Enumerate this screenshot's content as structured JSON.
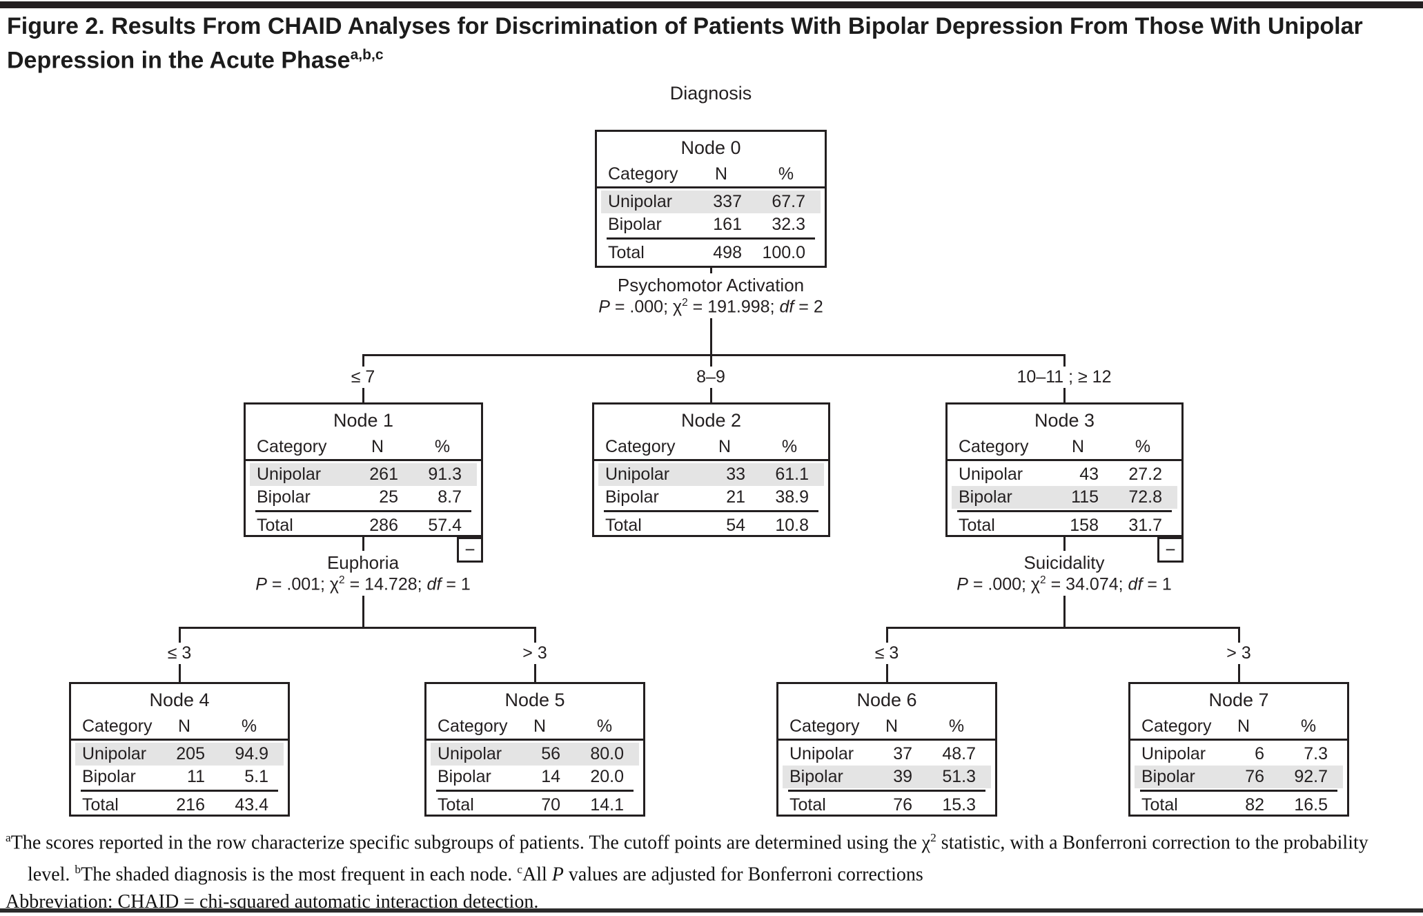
{
  "colors": {
    "ink": "#231f20",
    "shaded_row": "#e4e4e4",
    "background": "#ffffff"
  },
  "title": {
    "segments": [
      {
        "t": "Figure 2. Results From CHAID Analyses for Discrimination of Patients With Bipolar Depression From Those With Unipolar Depression in the Acute Phase"
      },
      {
        "t": "a,b,c",
        "s": "sup"
      }
    ]
  },
  "tree": {
    "root_variable_label": "Diagnosis",
    "splits": {
      "psychomotor": {
        "name": "Psychomotor Activation",
        "stats": [
          {
            "t": "P",
            "s": "i"
          },
          {
            "t": " = .000; χ"
          },
          {
            "t": "2",
            "s": "sup"
          },
          {
            "t": " = 191.998; "
          },
          {
            "t": "df",
            "s": "i"
          },
          {
            "t": " = 2"
          }
        ]
      },
      "euphoria": {
        "name": "Euphoria",
        "stats": [
          {
            "t": "P",
            "s": "i"
          },
          {
            "t": " = .001; χ"
          },
          {
            "t": "2",
            "s": "sup"
          },
          {
            "t": " = 14.728; "
          },
          {
            "t": "df",
            "s": "i"
          },
          {
            "t": " = 1"
          }
        ]
      },
      "suicidality": {
        "name": "Suicidality",
        "stats": [
          {
            "t": "P",
            "s": "i"
          },
          {
            "t": " = .000; χ"
          },
          {
            "t": "2",
            "s": "sup"
          },
          {
            "t": " = 34.074; "
          },
          {
            "t": "df",
            "s": "i"
          },
          {
            "t": " = 1"
          }
        ]
      }
    },
    "branch_labels": {
      "pa_low": "≤ 7",
      "pa_mid": "8–9",
      "pa_high": "10–11 ; ≥ 12",
      "eu_low": "≤ 3",
      "eu_high": "> 3",
      "su_low": "≤ 3",
      "su_high": "> 3"
    },
    "collapse_glyph": "−"
  },
  "table_headers": {
    "category": "Category",
    "n": "N",
    "pct": "%"
  },
  "nodes": [
    {
      "title": "Node 0",
      "highlight_row": 0,
      "rows": [
        {
          "cat": "Unipolar",
          "n": "337",
          "pct": "67.7"
        },
        {
          "cat": "Bipolar",
          "n": "161",
          "pct": "32.3"
        }
      ],
      "total": {
        "cat": "Total",
        "n": "498",
        "pct": "100.0"
      }
    },
    {
      "title": "Node 1",
      "highlight_row": 0,
      "rows": [
        {
          "cat": "Unipolar",
          "n": "261",
          "pct": "91.3"
        },
        {
          "cat": "Bipolar",
          "n": "25",
          "pct": "8.7"
        }
      ],
      "total": {
        "cat": "Total",
        "n": "286",
        "pct": "57.4"
      }
    },
    {
      "title": "Node 2",
      "highlight_row": 0,
      "rows": [
        {
          "cat": "Unipolar",
          "n": "33",
          "pct": "61.1"
        },
        {
          "cat": "Bipolar",
          "n": "21",
          "pct": "38.9"
        }
      ],
      "total": {
        "cat": "Total",
        "n": "54",
        "pct": "10.8"
      }
    },
    {
      "title": "Node 3",
      "highlight_row": 1,
      "rows": [
        {
          "cat": "Unipolar",
          "n": "43",
          "pct": "27.2"
        },
        {
          "cat": "Bipolar",
          "n": "115",
          "pct": "72.8"
        }
      ],
      "total": {
        "cat": "Total",
        "n": "158",
        "pct": "31.7"
      }
    },
    {
      "title": "Node 4",
      "highlight_row": 0,
      "rows": [
        {
          "cat": "Unipolar",
          "n": "205",
          "pct": "94.9"
        },
        {
          "cat": "Bipolar",
          "n": "11",
          "pct": "5.1"
        }
      ],
      "total": {
        "cat": "Total",
        "n": "216",
        "pct": "43.4"
      }
    },
    {
      "title": "Node 5",
      "highlight_row": 0,
      "rows": [
        {
          "cat": "Unipolar",
          "n": "56",
          "pct": "80.0"
        },
        {
          "cat": "Bipolar",
          "n": "14",
          "pct": "20.0"
        }
      ],
      "total": {
        "cat": "Total",
        "n": "70",
        "pct": "14.1"
      }
    },
    {
      "title": "Node 6",
      "highlight_row": 1,
      "rows": [
        {
          "cat": "Unipolar",
          "n": "37",
          "pct": "48.7"
        },
        {
          "cat": "Bipolar",
          "n": "39",
          "pct": "51.3"
        }
      ],
      "total": {
        "cat": "Total",
        "n": "76",
        "pct": "15.3"
      }
    },
    {
      "title": "Node 7",
      "highlight_row": 1,
      "rows": [
        {
          "cat": "Unipolar",
          "n": "6",
          "pct": "7.3"
        },
        {
          "cat": "Bipolar",
          "n": "76",
          "pct": "92.7"
        }
      ],
      "total": {
        "cat": "Total",
        "n": "82",
        "pct": "16.5"
      }
    }
  ],
  "footnotes": {
    "p1": [
      {
        "t": "a",
        "s": "sup"
      },
      {
        "t": "The scores reported in the row characterize specific subgroups of patients. The cutoff points are determined using the χ"
      },
      {
        "t": "2",
        "s": "sup"
      },
      {
        "t": " statistic, with a Bonferroni correction to the probability level. "
      },
      {
        "t": "b",
        "s": "sup"
      },
      {
        "t": "The shaded diagnosis is the most frequent in each node. "
      },
      {
        "t": "c",
        "s": "sup"
      },
      {
        "t": "All "
      },
      {
        "t": "P",
        "s": "i"
      },
      {
        "t": " values are adjusted for Bonferroni corrections"
      }
    ],
    "p2": "Abbreviation: CHAID = chi-squared automatic interaction detection."
  }
}
